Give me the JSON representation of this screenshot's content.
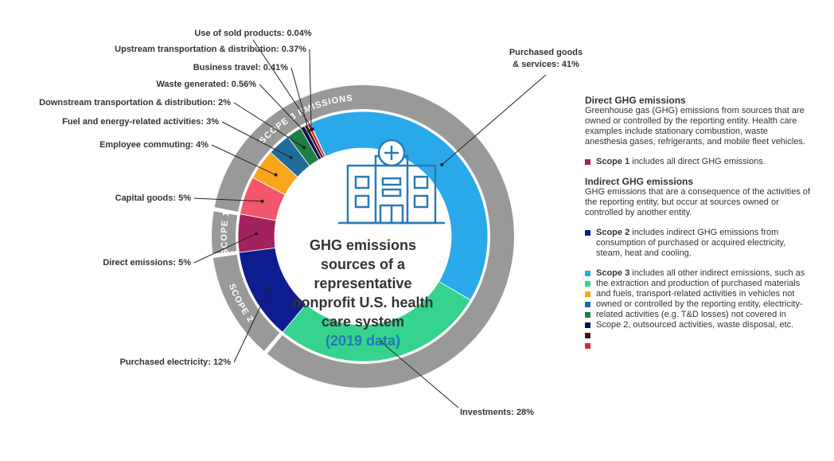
{
  "chart_data": {
    "type": "donut",
    "title": "GHG emissions sources of a representative nonprofit U.S. health care system",
    "subtitle": "(2019 data)",
    "categories": [
      "Purchased goods & services",
      "Investments",
      "Purchased electricity",
      "Direct emissions",
      "Capital goods",
      "Employee commuting",
      "Fuel and energy-related activities",
      "Downstream transportation & distribution",
      "Waste generated",
      "Business travel",
      "Upstream transportation & distribution",
      "Use of sold products"
    ],
    "values": [
      41,
      28,
      12,
      5,
      5,
      4,
      3,
      2,
      0.56,
      0.41,
      0.37,
      0.04
    ],
    "value_labels": [
      "41%",
      "28%",
      "12%",
      "5%",
      "5%",
      "4%",
      "3%",
      "2%",
      "0.56%",
      "0.41%",
      "0.37%",
      "0.04%"
    ],
    "colors": [
      "#2aa9ea",
      "#35d38d",
      "#0d1c8f",
      "#a3225c",
      "#f4566b",
      "#f9a61a",
      "#1f6c9b",
      "#1f7d45",
      "#0b0b50",
      "#4a0d2c",
      "#d42a38",
      "#8a8a8a"
    ],
    "scopes": [
      "SCOPE 3 EMISSIONS",
      "SCOPE 2",
      "SCOPE 1"
    ]
  },
  "panel": {
    "direct_heading": "Direct GHG emissions",
    "direct_text": "Greenhouse gas (GHG) emissions from sources that are owned or controlled by the reporting entity. Health care examples include stationary combustion, waste anesthesia gases, refrigerants, and mobile fleet vehicles.",
    "scope1_name": "Scope 1",
    "scope1_text": "includes all direct GHG emissions.",
    "indirect_heading": "Indirect GHG emissions",
    "indirect_text": "GHG emissions that are a consequence of the activities of the reporting entity, but occur at sources owned or controlled by another entity.",
    "scope2_name": "Scope 2",
    "scope2_text": "includes indirect GHG emissions from consumption of purchased or acquired electricity, steam, heat and cooling.",
    "scope3_name": "Scope 3",
    "scope3_text": "includes all other indirect emissions, such as the extraction and production of purchased materials and fuels, transport-related activities in vehicles not owned or controlled by the reporting entity, electricity-related activities (e.g. T&D losses) not covered in Scope 2, outsourced activities, waste disposal, etc."
  }
}
